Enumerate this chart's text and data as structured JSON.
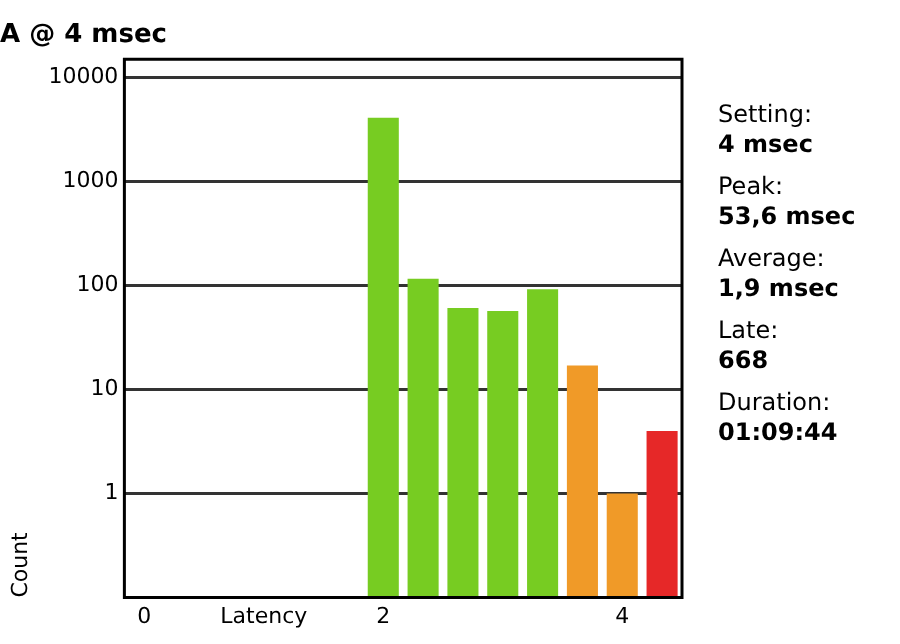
{
  "chart_data": {
    "type": "bar",
    "title": "A @ 4 msec",
    "ylabel": "Count",
    "categories": [
      "0",
      null,
      null,
      "Latency",
      null,
      null,
      "2",
      null,
      null,
      null,
      null,
      null,
      "4",
      null
    ],
    "values": [
      null,
      null,
      null,
      null,
      null,
      null,
      4100,
      116,
      61,
      57,
      92,
      17,
      1,
      4
    ],
    "colors": [
      "#77cc22",
      "#77cc22",
      "#77cc22",
      "#77cc22",
      "#77cc22",
      "#77cc22",
      "#77cc22",
      "#77cc22",
      "#77cc22",
      "#77cc22",
      "#77cc22",
      "#f09a28",
      "#f09a28",
      "#e62828"
    ],
    "log": true,
    "ylim": [
      0.1,
      15000
    ],
    "yticks": [
      1,
      10,
      100,
      1000,
      10000
    ],
    "grid": "y",
    "legend": false,
    "annotations": [
      "Setting:",
      "4 msec",
      "Peak:",
      "53,6 msec",
      "Average:",
      "1,9 msec",
      "Late:",
      "668",
      "Duration:",
      "01:09:44"
    ]
  }
}
